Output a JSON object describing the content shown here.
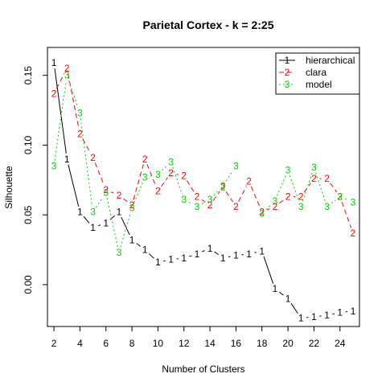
{
  "chart_data": {
    "type": "line",
    "title": "Parietal Cortex - k = 2:25",
    "xlabel": "Number of Clusters",
    "ylabel": "Silhouette",
    "xlim": [
      1.5,
      25.5
    ],
    "ylim": [
      -0.03,
      0.17
    ],
    "x_ticks": [
      2,
      4,
      6,
      8,
      10,
      12,
      14,
      16,
      18,
      20,
      22,
      24
    ],
    "x_tick_labels": [
      "2",
      "4",
      "6",
      "8",
      "10",
      "12",
      "14",
      "16",
      "18",
      "20",
      "22",
      "24"
    ],
    "y_ticks": [
      0.0,
      0.05,
      0.1,
      0.15
    ],
    "y_tick_labels": [
      "0.00",
      "0.05",
      "0.10",
      "0.15"
    ],
    "legend_position": "top-right",
    "x": [
      2,
      3,
      4,
      5,
      6,
      7,
      8,
      9,
      10,
      11,
      12,
      13,
      14,
      15,
      16,
      17,
      18,
      19,
      20,
      21,
      22,
      23,
      24,
      25
    ],
    "series": [
      {
        "name": "hierarchical",
        "color": "#000000",
        "dash": "solid",
        "marker": "1",
        "values": [
          0.159,
          0.09,
          0.052,
          0.041,
          0.044,
          0.052,
          0.032,
          0.025,
          0.016,
          0.018,
          0.019,
          0.022,
          0.026,
          0.019,
          0.021,
          0.022,
          0.024,
          -0.003,
          -0.01,
          -0.024,
          -0.023,
          -0.022,
          -0.02,
          -0.019
        ]
      },
      {
        "name": "clara",
        "color": "#ff0000",
        "dash": "dashed",
        "marker": "2",
        "values": [
          0.137,
          0.155,
          0.108,
          0.091,
          0.068,
          0.064,
          0.057,
          0.09,
          0.067,
          0.08,
          0.078,
          0.063,
          0.057,
          0.07,
          0.056,
          0.074,
          0.052,
          0.056,
          0.063,
          0.063,
          0.076,
          0.076,
          0.063,
          0.037
        ]
      },
      {
        "name": "model",
        "color": "#00cd00",
        "dash": "dotted",
        "marker": "3",
        "values": [
          0.085,
          0.15,
          0.123,
          0.052,
          0.066,
          0.023,
          0.055,
          0.077,
          0.079,
          0.088,
          0.061,
          0.056,
          0.061,
          0.071,
          0.085,
          null,
          0.051,
          0.06,
          0.082,
          0.056,
          0.084,
          0.056,
          0.063,
          0.059
        ]
      }
    ]
  }
}
